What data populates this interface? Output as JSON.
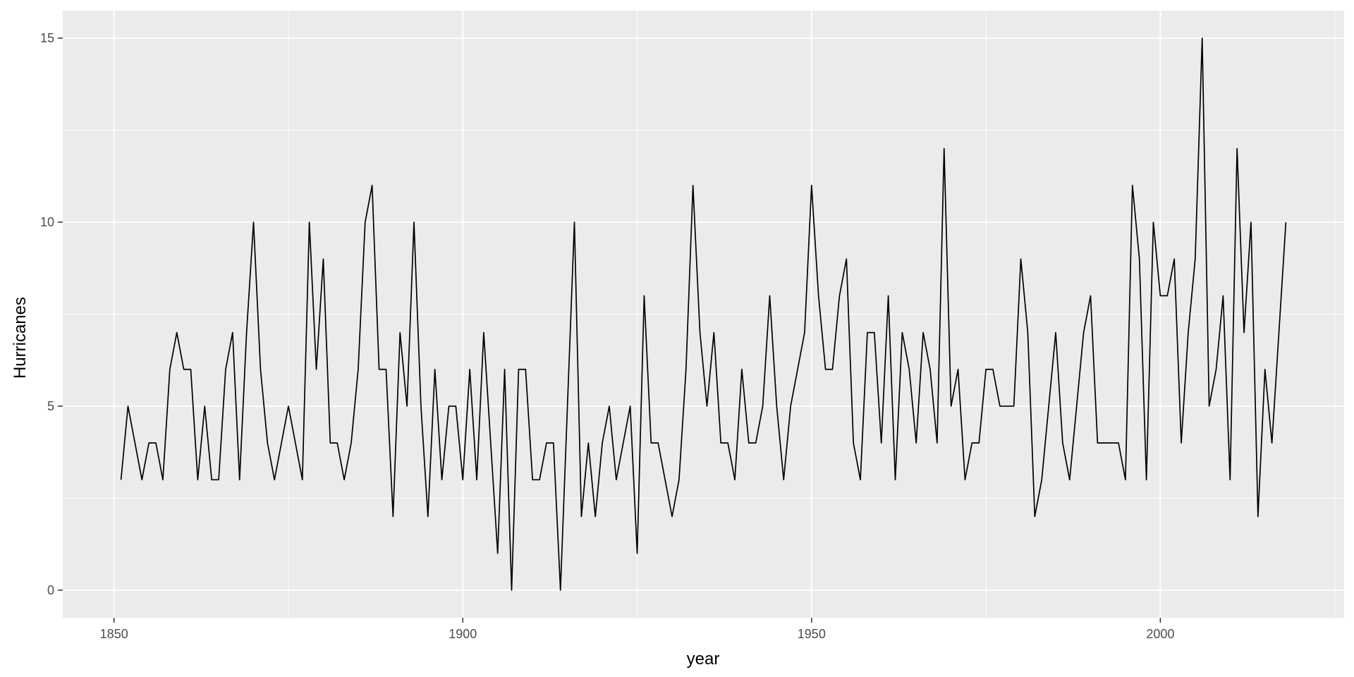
{
  "chart_data": {
    "type": "line",
    "title": "",
    "xlabel": "year",
    "ylabel": "Hurricanes",
    "xlim": [
      1842.65,
      2026.35
    ],
    "ylim": [
      -0.75,
      15.75
    ],
    "x_ticks": [
      1850,
      1900,
      1950,
      2000
    ],
    "y_ticks": [
      0,
      5,
      10,
      15
    ],
    "grid": true,
    "legend": "none",
    "colors": {
      "panel": "#EBEBEB",
      "grid": "#FFFFFF",
      "line": "#000000",
      "text": "#4D4D4D"
    },
    "series": [
      {
        "x": [
          1851,
          1852,
          1853,
          1854,
          1855,
          1856,
          1857,
          1858,
          1859,
          1860,
          1861,
          1862,
          1863,
          1864,
          1865,
          1866,
          1867,
          1868,
          1869,
          1870,
          1871,
          1872,
          1873,
          1874,
          1875,
          1876,
          1877,
          1878,
          1879,
          1880,
          1881,
          1882,
          1883,
          1884,
          1885,
          1886,
          1887,
          1888,
          1889,
          1890,
          1891,
          1892,
          1893,
          1894,
          1895,
          1896,
          1897,
          1898,
          1899,
          1900,
          1901,
          1902,
          1903,
          1904,
          1905,
          1906,
          1907,
          1908,
          1909,
          1910,
          1911,
          1912,
          1913,
          1914,
          1915,
          1916,
          1917,
          1918,
          1919,
          1920,
          1921,
          1922,
          1923,
          1924,
          1925,
          1926,
          1927,
          1928,
          1929,
          1930,
          1931,
          1932,
          1933,
          1934,
          1935,
          1936,
          1937,
          1938,
          1939,
          1940,
          1941,
          1942,
          1943,
          1944,
          1945,
          1946,
          1947,
          1948,
          1949,
          1950,
          1951,
          1952,
          1953,
          1954,
          1955,
          1956,
          1957,
          1958,
          1959,
          1960,
          1961,
          1962,
          1963,
          1964,
          1965,
          1966,
          1967,
          1968,
          1969,
          1970,
          1971,
          1972,
          1973,
          1974,
          1975,
          1976,
          1977,
          1978,
          1979,
          1980,
          1981,
          1982,
          1983,
          1984,
          1985,
          1986,
          1987,
          1988,
          1989,
          1990,
          1991,
          1992,
          1993,
          1994,
          1995,
          1996,
          1997,
          1998,
          1999,
          2000,
          2001,
          2002,
          2003,
          2004,
          2005,
          2006,
          2007,
          2008,
          2009,
          2010,
          2011,
          2012,
          2013,
          2014,
          2015,
          2016,
          2017,
          2018
        ],
        "values": [
          3,
          5,
          4,
          3,
          4,
          4,
          3,
          6,
          7,
          6,
          6,
          3,
          5,
          3,
          3,
          6,
          7,
          3,
          7,
          10,
          6,
          4,
          3,
          4,
          5,
          4,
          3,
          10,
          6,
          9,
          4,
          4,
          3,
          4,
          6,
          10,
          11,
          6,
          6,
          2,
          7,
          5,
          10,
          5,
          2,
          6,
          3,
          5,
          5,
          3,
          6,
          3,
          7,
          4,
          1,
          6,
          0,
          6,
          6,
          3,
          3,
          4,
          4,
          0,
          5,
          10,
          2,
          4,
          2,
          4,
          5,
          3,
          4,
          5,
          1,
          8,
          4,
          4,
          3,
          2,
          3,
          6,
          11,
          7,
          5,
          7,
          4,
          4,
          3,
          6,
          4,
          4,
          5,
          8,
          5,
          3,
          5,
          6,
          7,
          11,
          8,
          6,
          6,
          8,
          9,
          4,
          3,
          7,
          7,
          4,
          8,
          3,
          7,
          6,
          4,
          7,
          6,
          4,
          12,
          5,
          6,
          3,
          4,
          4,
          6,
          6,
          5,
          5,
          5,
          9,
          7,
          2,
          3,
          5,
          7,
          4,
          3,
          5,
          7,
          8,
          4,
          4,
          4,
          4,
          3,
          11,
          9,
          3,
          10,
          8,
          8,
          9,
          4,
          7,
          9,
          15,
          5,
          6,
          8,
          3,
          12,
          7,
          10,
          2,
          6,
          4,
          7,
          10
        ]
      }
    ]
  }
}
